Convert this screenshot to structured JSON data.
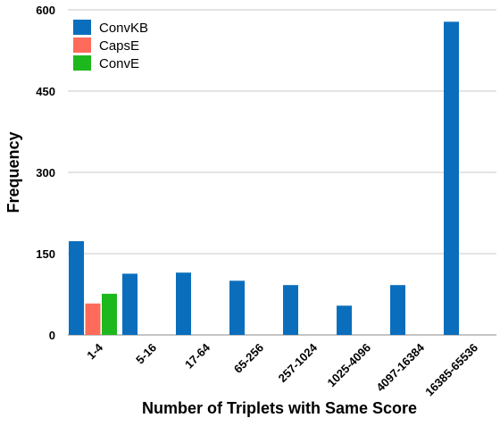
{
  "chart_data": {
    "type": "bar",
    "xlabel": "Number of Triplets with Same Score",
    "ylabel": "Frequency",
    "ylim": [
      0,
      600
    ],
    "yticks": [
      0,
      150,
      300,
      450,
      600
    ],
    "grid": true,
    "legend_position": "top-left",
    "categories": [
      "1-4",
      "5-16",
      "17-64",
      "65-256",
      "257-1024",
      "1025-4096",
      "4097-16384",
      "16385-65536"
    ],
    "series": [
      {
        "name": "ConvKB",
        "color": "#0A6EBD",
        "values": [
          173,
          113,
          115,
          100,
          92,
          54,
          92,
          578
        ]
      },
      {
        "name": "CapsE",
        "color": "#FF6B5A",
        "values": [
          58,
          0,
          0,
          0,
          0,
          0,
          0,
          0
        ]
      },
      {
        "name": "ConvE",
        "color": "#1DB81D",
        "values": [
          76,
          0,
          0,
          0,
          0,
          0,
          0,
          0
        ]
      }
    ]
  }
}
